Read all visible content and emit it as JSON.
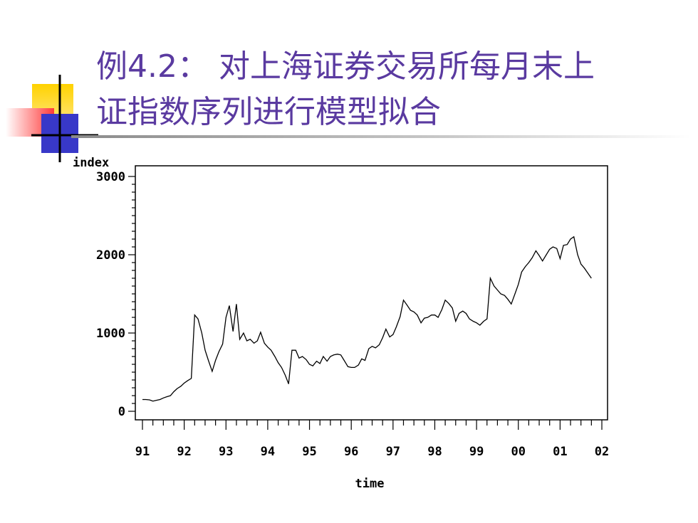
{
  "slide": {
    "title_line_1": "例4.2： 对上海证券交易所每月末上",
    "title_line_2": "证指数序列进行模型拟合"
  },
  "chart_data": {
    "type": "line",
    "title": "",
    "xlabel": "time",
    "ylabel": "index",
    "xlim": [
      1991,
      2002
    ],
    "ylim": [
      0,
      3000
    ],
    "x_ticks": [
      {
        "value": 1991,
        "label": "91"
      },
      {
        "value": 1992,
        "label": "92"
      },
      {
        "value": 1993,
        "label": "93"
      },
      {
        "value": 1994,
        "label": "94"
      },
      {
        "value": 1995,
        "label": "95"
      },
      {
        "value": 1996,
        "label": "96"
      },
      {
        "value": 1997,
        "label": "97"
      },
      {
        "value": 1998,
        "label": "98"
      },
      {
        "value": 1999,
        "label": "99"
      },
      {
        "value": 2000,
        "label": "00"
      },
      {
        "value": 2001,
        "label": "01"
      },
      {
        "value": 2002,
        "label": "02"
      }
    ],
    "y_ticks": [
      {
        "value": 0,
        "label": "0"
      },
      {
        "value": 1000,
        "label": "1000"
      },
      {
        "value": 2000,
        "label": "2000"
      },
      {
        "value": 3000,
        "label": "3000"
      }
    ],
    "grid": false,
    "legend": "none",
    "line_color": "#000000",
    "series": [
      {
        "x": [
          1991.0,
          1991.08,
          1991.17,
          1991.25,
          1991.33,
          1991.42,
          1991.5,
          1991.58,
          1991.67,
          1991.75,
          1991.83,
          1991.92,
          1992.0,
          1992.08,
          1992.17,
          1992.25,
          1992.33,
          1992.42,
          1992.5,
          1992.58,
          1992.67,
          1992.75,
          1992.83,
          1992.92,
          1993.0,
          1993.08,
          1993.17,
          1993.25,
          1993.33,
          1993.42,
          1993.5,
          1993.58,
          1993.67,
          1993.75,
          1993.83,
          1993.92,
          1994.0,
          1994.08,
          1994.17,
          1994.25,
          1994.33,
          1994.42,
          1994.5,
          1994.58,
          1994.67,
          1994.75,
          1994.83,
          1994.92,
          1995.0,
          1995.08,
          1995.17,
          1995.25,
          1995.33,
          1995.42,
          1995.5,
          1995.58,
          1995.67,
          1995.75,
          1995.83,
          1995.92,
          1996.0,
          1996.08,
          1996.17,
          1996.25,
          1996.33,
          1996.42,
          1996.5,
          1996.58,
          1996.67,
          1996.75,
          1996.83,
          1996.92,
          1997.0,
          1997.08,
          1997.17,
          1997.25,
          1997.33,
          1997.42,
          1997.5,
          1997.58,
          1997.67,
          1997.75,
          1997.83,
          1997.92,
          1998.0,
          1998.08,
          1998.17,
          1998.25,
          1998.33,
          1998.42,
          1998.5,
          1998.58,
          1998.67,
          1998.75,
          1998.83,
          1998.92,
          1999.0,
          1999.08,
          1999.17,
          1999.25,
          1999.33,
          1999.42,
          1999.5,
          1999.58,
          1999.67,
          1999.75,
          1999.83,
          1999.92,
          2000.0,
          2000.08,
          2000.17,
          2000.25,
          2000.33,
          2000.42,
          2000.5,
          2000.58,
          2000.67,
          2000.75,
          2000.83,
          2000.92,
          2001.0,
          2001.08,
          2001.17,
          2001.25,
          2001.33,
          2001.42,
          2001.5,
          2001.58,
          2001.67,
          2001.75
        ],
        "values": [
          150,
          150,
          145,
          130,
          140,
          150,
          170,
          185,
          200,
          250,
          290,
          320,
          360,
          390,
          420,
          1230,
          1180,
          1000,
          780,
          650,
          510,
          650,
          760,
          860,
          1200,
          1350,
          1020,
          1370,
          920,
          1000,
          900,
          920,
          870,
          900,
          1010,
          870,
          820,
          780,
          700,
          620,
          560,
          460,
          350,
          780,
          780,
          680,
          700,
          660,
          600,
          580,
          640,
          610,
          700,
          640,
          700,
          720,
          730,
          720,
          650,
          570,
          560,
          560,
          590,
          670,
          650,
          800,
          830,
          810,
          850,
          940,
          1050,
          950,
          980,
          1080,
          1210,
          1420,
          1360,
          1290,
          1270,
          1230,
          1130,
          1190,
          1200,
          1230,
          1230,
          1200,
          1300,
          1420,
          1380,
          1320,
          1150,
          1250,
          1280,
          1250,
          1180,
          1150,
          1130,
          1100,
          1150,
          1180,
          1700,
          1600,
          1550,
          1500,
          1480,
          1430,
          1370,
          1500,
          1620,
          1780,
          1850,
          1900,
          1960,
          2050,
          1990,
          1920,
          2000,
          2070,
          2100,
          2080,
          1950,
          2120,
          2130,
          2200,
          2230,
          2000,
          1880,
          1830,
          1760,
          1700
        ]
      }
    ]
  }
}
